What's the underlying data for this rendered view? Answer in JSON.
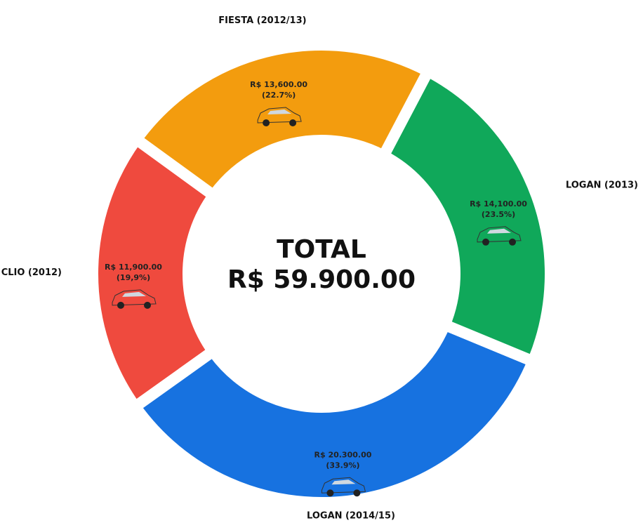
{
  "chart_data": {
    "type": "pie",
    "categories": [
      "FIESTA (2012/13)",
      "LOGAN (2013)",
      "LOGAN (2014/15)",
      "CLIO (2012)"
    ],
    "values": [
      13600,
      14100,
      20300,
      11900
    ],
    "value_labels": [
      "R$ 13,600.00",
      "R$ 14,100.00",
      "R$ 20.300.00",
      "R$ 11,900.00"
    ],
    "percent_labels": [
      "(22.7%)",
      "(23.5%)",
      "(33.9%)",
      "(19,9%)"
    ],
    "colors": [
      "#f39c0e",
      "#10a85a",
      "#1772e0",
      "#ef4a3e"
    ],
    "center_text": [
      "TOTAL",
      "R$ 59.900.00"
    ]
  }
}
